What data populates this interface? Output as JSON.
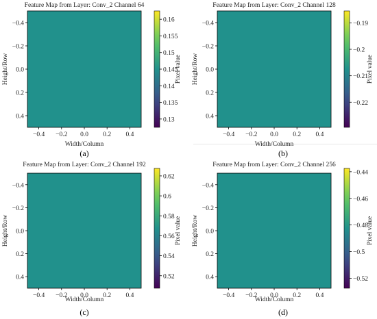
{
  "chart_data": [
    {
      "type": "heatmap",
      "title": "Feature Map from Layer: Conv_2 Channel 64",
      "xlabel": "Width/Column",
      "ylabel": "Height/Row",
      "xlim": [
        -0.5,
        0.5
      ],
      "ylim": [
        0.5,
        -0.5
      ],
      "xticks": [
        -0.4,
        -0.2,
        0.0,
        0.2,
        0.4
      ],
      "yticks": [
        -0.4,
        -0.2,
        0.0,
        0.2,
        0.4
      ],
      "value": 0.1475,
      "colorbar": {
        "label": "Pixel value",
        "min": 0.1275,
        "max": 0.1625,
        "ticks": [
          0.13,
          0.135,
          0.14,
          0.145,
          0.15,
          0.155,
          0.16
        ]
      },
      "colormap": "viridis",
      "fill_color": "#21918c",
      "caption": "(a)"
    },
    {
      "type": "heatmap",
      "title": "Feature Map from Layer: Conv_2 Channel 128",
      "xlabel": "Width/Column",
      "ylabel": "Height/Row",
      "xlim": [
        -0.5,
        0.5
      ],
      "ylim": [
        0.5,
        -0.5
      ],
      "xticks": [
        -0.4,
        -0.2,
        0.0,
        0.2,
        0.4
      ],
      "yticks": [
        -0.4,
        -0.2,
        0.0,
        0.2,
        0.4
      ],
      "value": -0.2075,
      "colorbar": {
        "label": "Pixel value",
        "min": -0.2295,
        "max": -0.1855,
        "ticks": [
          -0.22,
          -0.21,
          -0.2,
          -0.19
        ]
      },
      "colormap": "viridis",
      "fill_color": "#21918c",
      "caption": "(b)"
    },
    {
      "type": "heatmap",
      "title": "Feature Map from Layer: Conv_2 Channel 192",
      "xlabel": "Width/Column",
      "ylabel": "Height/Row",
      "xlim": [
        -0.5,
        0.5
      ],
      "ylim": [
        0.5,
        -0.5
      ],
      "xticks": [
        -0.4,
        -0.2,
        0.0,
        0.2,
        0.4
      ],
      "yticks": [
        -0.4,
        -0.2,
        0.0,
        0.2,
        0.4
      ],
      "value": 0.5675,
      "colorbar": {
        "label": "Pixel value",
        "min": 0.5075,
        "max": 0.6275,
        "ticks": [
          0.52,
          0.54,
          0.56,
          0.58,
          0.6,
          0.62
        ]
      },
      "colormap": "viridis",
      "fill_color": "#21918c",
      "caption": "(c)"
    },
    {
      "type": "heatmap",
      "title": "Feature Map from Layer: Conv_2 Channel 256",
      "xlabel": "Width/Column",
      "ylabel": "Height/Row",
      "xlim": [
        -0.5,
        0.5
      ],
      "ylim": [
        0.5,
        -0.5
      ],
      "xticks": [
        -0.4,
        -0.2,
        0.0,
        0.2,
        0.4
      ],
      "yticks": [
        -0.4,
        -0.2,
        0.0,
        0.2,
        0.4
      ],
      "value": -0.4825,
      "colorbar": {
        "label": "Pixel value",
        "min": -0.5275,
        "max": -0.4375,
        "ticks": [
          -0.52,
          -0.5,
          -0.48,
          -0.46,
          -0.44
        ]
      },
      "colormap": "viridis",
      "fill_color": "#21918c",
      "caption": "(d)"
    }
  ]
}
